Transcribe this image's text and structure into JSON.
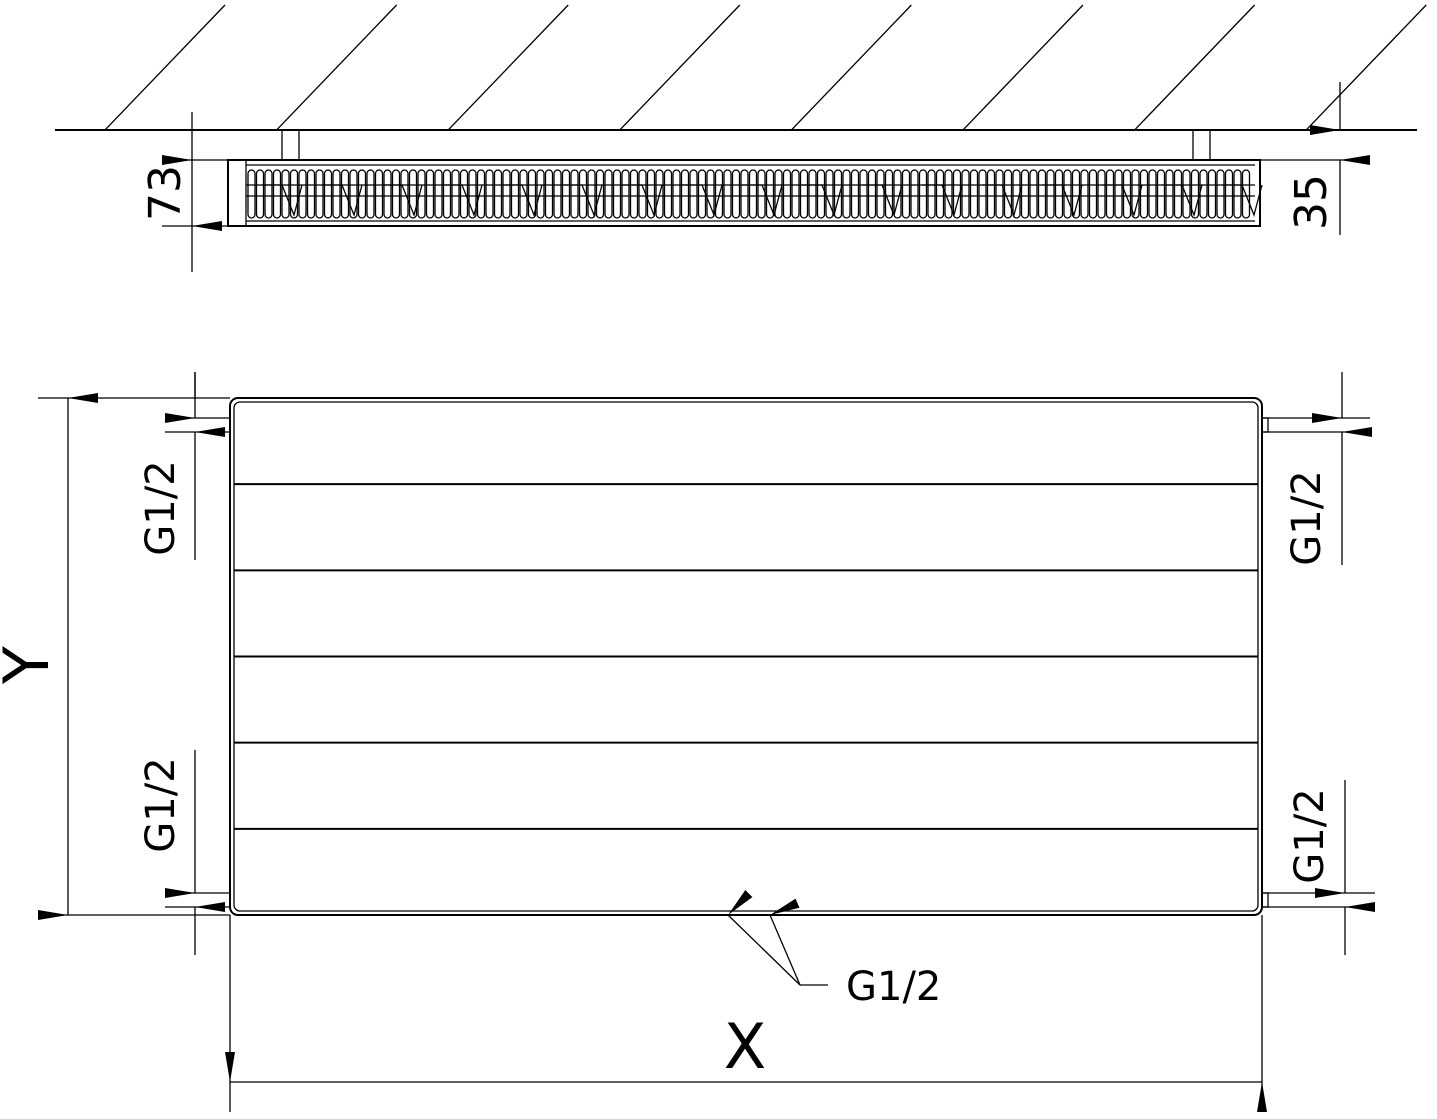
{
  "drawing": {
    "top_view": {
      "depth_dim": "73",
      "wall_gap_dim": "35"
    },
    "front_view": {
      "height_label": "Y",
      "width_label": "X",
      "connection_left_top": "G1/2",
      "connection_left_bottom": "G1/2",
      "connection_right_top": "G1/2",
      "connection_right_bottom": "G1/2",
      "connection_bottom": "G1/2",
      "panel_grooves": 5
    },
    "line_color": "#000000",
    "background": "#ffffff"
  }
}
